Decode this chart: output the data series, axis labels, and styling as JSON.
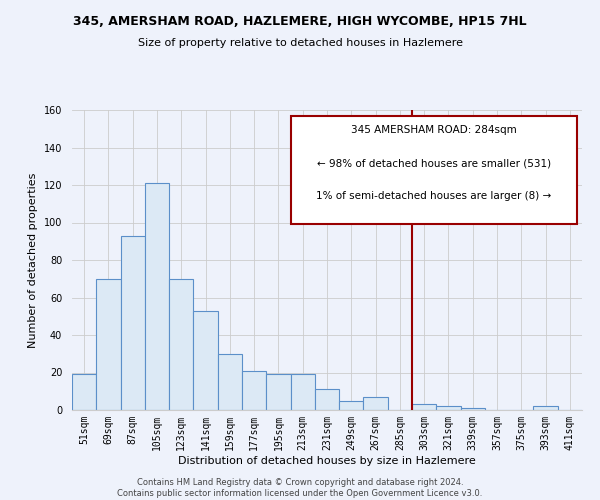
{
  "title": "345, AMERSHAM ROAD, HAZLEMERE, HIGH WYCOMBE, HP15 7HL",
  "subtitle": "Size of property relative to detached houses in Hazlemere",
  "xlabel": "Distribution of detached houses by size in Hazlemere",
  "ylabel": "Number of detached properties",
  "bar_color": "#dce9f5",
  "bar_edge_color": "#5b8fc9",
  "background_color": "#eef2fb",
  "grid_color": "#cccccc",
  "categories": [
    "51sqm",
    "69sqm",
    "87sqm",
    "105sqm",
    "123sqm",
    "141sqm",
    "159sqm",
    "177sqm",
    "195sqm",
    "213sqm",
    "231sqm",
    "249sqm",
    "267sqm",
    "285sqm",
    "303sqm",
    "321sqm",
    "339sqm",
    "357sqm",
    "375sqm",
    "393sqm",
    "411sqm"
  ],
  "values": [
    19,
    70,
    93,
    121,
    70,
    53,
    30,
    21,
    19,
    19,
    11,
    5,
    7,
    0,
    3,
    2,
    1,
    0,
    0,
    2,
    0
  ],
  "vline_idx": 13,
  "vline_color": "#990000",
  "annotation_title": "345 AMERSHAM ROAD: 284sqm",
  "annotation_line1": "← 98% of detached houses are smaller (531)",
  "annotation_line2": "1% of semi-detached houses are larger (8) →",
  "ylim": [
    0,
    160
  ],
  "yticks": [
    0,
    20,
    40,
    60,
    80,
    100,
    120,
    140,
    160
  ],
  "title_fontsize": 9,
  "subtitle_fontsize": 8,
  "ylabel_fontsize": 8,
  "xlabel_fontsize": 8,
  "tick_fontsize": 7,
  "footer1": "Contains HM Land Registry data © Crown copyright and database right 2024.",
  "footer2": "Contains public sector information licensed under the Open Government Licence v3.0."
}
